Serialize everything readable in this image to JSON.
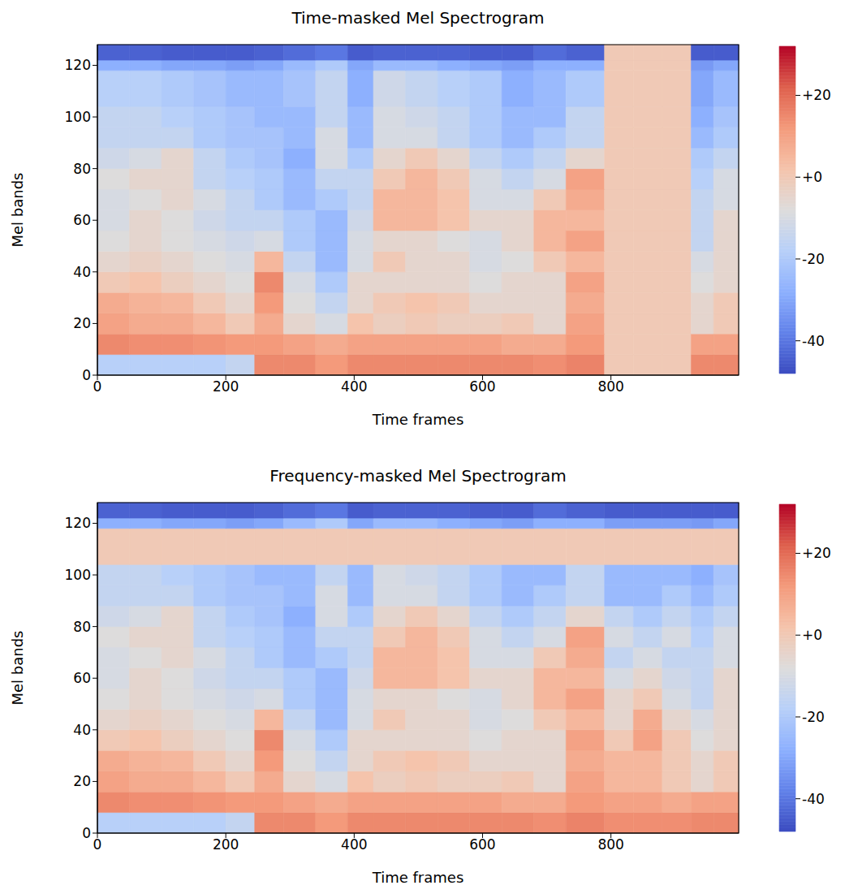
{
  "chart_data": [
    {
      "type": "heatmap",
      "title": "Time-masked Mel Spectrogram",
      "x_label": "Time frames",
      "y_label": "Mel bands",
      "xlim": [
        0,
        999
      ],
      "xticks": [
        0,
        200,
        400,
        600,
        800
      ],
      "ylim": [
        0,
        128
      ],
      "yticks": [
        0,
        20,
        40,
        60,
        80,
        100,
        120
      ],
      "x_edges": [
        0,
        50,
        100,
        150,
        200,
        245,
        290,
        340,
        390,
        430,
        480,
        530,
        580,
        630,
        680,
        730,
        790,
        835,
        880,
        925,
        960,
        999
      ],
      "y_edges": [
        0,
        8,
        16,
        24,
        32,
        40,
        48,
        56,
        64,
        72,
        80,
        88,
        96,
        104,
        118,
        122,
        128
      ],
      "cells": [
        [
          -18,
          -18,
          -18,
          -18,
          -15,
          15,
          15,
          12,
          15,
          15,
          15,
          15,
          15,
          15,
          14,
          16,
          0,
          0,
          0,
          15,
          15
        ],
        [
          15,
          14,
          14,
          13,
          12,
          12,
          10,
          8,
          10,
          10,
          10,
          10,
          10,
          8,
          8,
          12,
          0,
          0,
          0,
          10,
          10
        ],
        [
          10,
          8,
          8,
          5,
          0,
          8,
          -5,
          -10,
          2,
          -2,
          0,
          -2,
          -2,
          0,
          -5,
          10,
          0,
          0,
          0,
          -5,
          0
        ],
        [
          8,
          6,
          5,
          0,
          -5,
          12,
          -8,
          -15,
          -5,
          0,
          2,
          0,
          -5,
          -5,
          -5,
          8,
          0,
          0,
          0,
          -5,
          0
        ],
        [
          0,
          2,
          -2,
          -5,
          -8,
          15,
          -10,
          -20,
          -5,
          -5,
          -5,
          -5,
          -8,
          -5,
          -5,
          10,
          0,
          0,
          0,
          -8,
          -5
        ],
        [
          -5,
          -3,
          -5,
          -8,
          -10,
          5,
          -15,
          -25,
          -10,
          0,
          -5,
          -5,
          -10,
          -8,
          0,
          5,
          0,
          0,
          0,
          -10,
          -5
        ],
        [
          -8,
          -5,
          -8,
          -10,
          -12,
          -10,
          -20,
          -25,
          -10,
          -5,
          -5,
          -8,
          -10,
          -5,
          5,
          10,
          0,
          0,
          0,
          -15,
          -5
        ],
        [
          -10,
          -5,
          -8,
          -12,
          -15,
          -15,
          -20,
          -25,
          -12,
          5,
          5,
          2,
          -5,
          -5,
          5,
          5,
          0,
          0,
          0,
          -15,
          -5
        ],
        [
          -10,
          -8,
          -5,
          -10,
          -15,
          -20,
          -25,
          -20,
          -15,
          5,
          5,
          2,
          -10,
          -10,
          0,
          8,
          0,
          0,
          0,
          -15,
          -10
        ],
        [
          -8,
          -5,
          -5,
          -15,
          -18,
          -20,
          -25,
          -15,
          -15,
          0,
          5,
          0,
          -10,
          -15,
          -10,
          10,
          0,
          0,
          0,
          -18,
          -10
        ],
        [
          -12,
          -10,
          -5,
          -15,
          -20,
          -22,
          -28,
          -10,
          -20,
          -5,
          0,
          -5,
          -15,
          -20,
          -15,
          -5,
          0,
          0,
          0,
          -20,
          -15
        ],
        [
          -15,
          -15,
          -15,
          -20,
          -22,
          -22,
          -25,
          -10,
          -25,
          -10,
          -10,
          -15,
          -20,
          -25,
          -20,
          -15,
          0,
          0,
          0,
          -25,
          -20
        ],
        [
          -15,
          -15,
          -18,
          -20,
          -22,
          -25,
          -25,
          -15,
          -25,
          -10,
          -12,
          -15,
          -20,
          -25,
          -25,
          -15,
          0,
          0,
          0,
          -28,
          -22
        ],
        [
          -18,
          -18,
          -20,
          -22,
          -25,
          -25,
          -22,
          -15,
          -28,
          -12,
          -15,
          -18,
          -20,
          -28,
          -25,
          -20,
          0,
          0,
          0,
          -30,
          -25
        ],
        [
          -28,
          -28,
          -30,
          -30,
          -32,
          -30,
          -25,
          -20,
          -30,
          -25,
          -25,
          -28,
          -30,
          -32,
          -28,
          -28,
          0,
          0,
          0,
          -33,
          -30
        ],
        [
          -44,
          -44,
          -45,
          -45,
          -45,
          -44,
          -42,
          -40,
          -45,
          -44,
          -44,
          -44,
          -45,
          -45,
          -42,
          -44,
          0,
          0,
          0,
          -45,
          -45
        ]
      ],
      "colorbar": {
        "range": [
          -48,
          32
        ],
        "ticks": [
          {
            "value": 20,
            "label": "+20"
          },
          {
            "value": 0,
            "label": "+0"
          },
          -20,
          -40
        ]
      }
    },
    {
      "type": "heatmap",
      "title": "Frequency-masked Mel Spectrogram",
      "x_label": "Time frames",
      "y_label": "Mel bands",
      "xlim": [
        0,
        999
      ],
      "xticks": [
        0,
        200,
        400,
        600,
        800
      ],
      "ylim": [
        0,
        128
      ],
      "yticks": [
        0,
        20,
        40,
        60,
        80,
        100,
        120
      ],
      "x_edges": [
        0,
        50,
        100,
        150,
        200,
        245,
        290,
        340,
        390,
        430,
        480,
        530,
        580,
        630,
        680,
        730,
        790,
        835,
        880,
        925,
        960,
        999
      ],
      "y_edges": [
        0,
        8,
        16,
        24,
        32,
        40,
        48,
        56,
        64,
        72,
        80,
        88,
        96,
        104,
        118,
        122,
        128
      ],
      "cells": [
        [
          -18,
          -18,
          -18,
          -18,
          -15,
          15,
          15,
          12,
          15,
          15,
          15,
          15,
          15,
          15,
          14,
          16,
          14,
          14,
          14,
          15,
          15
        ],
        [
          15,
          14,
          14,
          13,
          12,
          12,
          10,
          8,
          10,
          10,
          10,
          10,
          10,
          8,
          8,
          12,
          10,
          10,
          8,
          10,
          10
        ],
        [
          10,
          8,
          8,
          5,
          0,
          8,
          -5,
          -10,
          2,
          -2,
          0,
          -2,
          -2,
          0,
          -5,
          10,
          5,
          5,
          0,
          -5,
          0
        ],
        [
          8,
          6,
          5,
          0,
          -5,
          12,
          -8,
          -15,
          -5,
          0,
          2,
          0,
          -5,
          -5,
          -5,
          8,
          5,
          5,
          0,
          -5,
          0
        ],
        [
          0,
          2,
          -2,
          -5,
          -8,
          15,
          -10,
          -20,
          -5,
          -5,
          -5,
          -5,
          -8,
          -5,
          -5,
          10,
          0,
          10,
          0,
          -8,
          -5
        ],
        [
          -5,
          -3,
          -5,
          -8,
          -10,
          5,
          -15,
          -25,
          -10,
          0,
          -5,
          -5,
          -10,
          -8,
          0,
          5,
          -5,
          8,
          -5,
          -10,
          -5
        ],
        [
          -8,
          -5,
          -8,
          -10,
          -12,
          -10,
          -20,
          -25,
          -10,
          -5,
          -5,
          -8,
          -10,
          -5,
          5,
          10,
          -5,
          0,
          -10,
          -15,
          -5
        ],
        [
          -10,
          -5,
          -8,
          -12,
          -15,
          -15,
          -20,
          -25,
          -12,
          5,
          5,
          2,
          -5,
          -5,
          5,
          5,
          -10,
          -5,
          -12,
          -15,
          -5
        ],
        [
          -10,
          -8,
          -5,
          -10,
          -15,
          -20,
          -25,
          -20,
          -15,
          5,
          5,
          2,
          -10,
          -10,
          0,
          8,
          -15,
          -10,
          -15,
          -15,
          -10
        ],
        [
          -8,
          -5,
          -5,
          -15,
          -18,
          -20,
          -25,
          -15,
          -15,
          0,
          5,
          0,
          -10,
          -15,
          -10,
          10,
          -10,
          -15,
          -10,
          -18,
          -10
        ],
        [
          -12,
          -10,
          -5,
          -15,
          -20,
          -22,
          -28,
          -10,
          -20,
          -5,
          0,
          -5,
          -15,
          -20,
          -15,
          -5,
          -15,
          -20,
          -15,
          -20,
          -15
        ],
        [
          -15,
          -15,
          -15,
          -20,
          -22,
          -22,
          -25,
          -10,
          -25,
          -10,
          -10,
          -15,
          -20,
          -25,
          -20,
          -15,
          -25,
          -25,
          -20,
          -25,
          -20
        ],
        [
          -15,
          -15,
          -18,
          -20,
          -22,
          -25,
          -25,
          -15,
          -25,
          -10,
          -12,
          -15,
          -20,
          -25,
          -25,
          -15,
          -25,
          -25,
          -25,
          -28,
          -22
        ],
        [
          0,
          0,
          0,
          0,
          0,
          0,
          0,
          0,
          0,
          0,
          0,
          0,
          0,
          0,
          0,
          0,
          0,
          0,
          0,
          0,
          0
        ],
        [
          -28,
          -28,
          -30,
          -30,
          -32,
          -30,
          -25,
          -20,
          -30,
          -25,
          -25,
          -28,
          -30,
          -32,
          -28,
          -28,
          -32,
          -32,
          -32,
          -33,
          -30
        ],
        [
          -44,
          -44,
          -45,
          -45,
          -45,
          -44,
          -42,
          -40,
          -45,
          -44,
          -44,
          -44,
          -45,
          -45,
          -42,
          -44,
          -45,
          -45,
          -45,
          -45,
          -45
        ]
      ],
      "colorbar": {
        "range": [
          -48,
          32
        ],
        "ticks": [
          {
            "value": 20,
            "label": "+20"
          },
          {
            "value": 0,
            "label": "+0"
          },
          -20,
          -40
        ]
      }
    }
  ]
}
